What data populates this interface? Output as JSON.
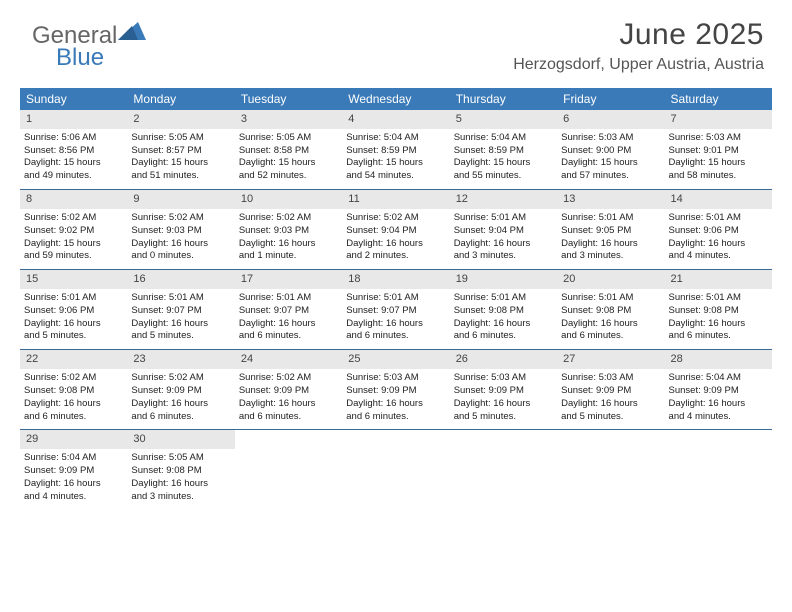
{
  "brand": {
    "part1": "General",
    "part2": "Blue"
  },
  "header": {
    "title": "June 2025",
    "location": "Herzogsdorf, Upper Austria, Austria"
  },
  "colors": {
    "header_bg": "#3a7ab8",
    "week_border": "#3a6a98",
    "daynum_bg": "#e8e8e8",
    "text": "#222222",
    "title_text": "#444444",
    "location_text": "#555555"
  },
  "typography": {
    "title_fontsize": 30,
    "location_fontsize": 16,
    "dayheader_fontsize": 12,
    "body_fontsize": 9.5
  },
  "dayNames": [
    "Sunday",
    "Monday",
    "Tuesday",
    "Wednesday",
    "Thursday",
    "Friday",
    "Saturday"
  ],
  "weeks": [
    [
      {
        "n": "1",
        "sr": "Sunrise: 5:06 AM",
        "ss": "Sunset: 8:56 PM",
        "d1": "Daylight: 15 hours",
        "d2": "and 49 minutes."
      },
      {
        "n": "2",
        "sr": "Sunrise: 5:05 AM",
        "ss": "Sunset: 8:57 PM",
        "d1": "Daylight: 15 hours",
        "d2": "and 51 minutes."
      },
      {
        "n": "3",
        "sr": "Sunrise: 5:05 AM",
        "ss": "Sunset: 8:58 PM",
        "d1": "Daylight: 15 hours",
        "d2": "and 52 minutes."
      },
      {
        "n": "4",
        "sr": "Sunrise: 5:04 AM",
        "ss": "Sunset: 8:59 PM",
        "d1": "Daylight: 15 hours",
        "d2": "and 54 minutes."
      },
      {
        "n": "5",
        "sr": "Sunrise: 5:04 AM",
        "ss": "Sunset: 8:59 PM",
        "d1": "Daylight: 15 hours",
        "d2": "and 55 minutes."
      },
      {
        "n": "6",
        "sr": "Sunrise: 5:03 AM",
        "ss": "Sunset: 9:00 PM",
        "d1": "Daylight: 15 hours",
        "d2": "and 57 minutes."
      },
      {
        "n": "7",
        "sr": "Sunrise: 5:03 AM",
        "ss": "Sunset: 9:01 PM",
        "d1": "Daylight: 15 hours",
        "d2": "and 58 minutes."
      }
    ],
    [
      {
        "n": "8",
        "sr": "Sunrise: 5:02 AM",
        "ss": "Sunset: 9:02 PM",
        "d1": "Daylight: 15 hours",
        "d2": "and 59 minutes."
      },
      {
        "n": "9",
        "sr": "Sunrise: 5:02 AM",
        "ss": "Sunset: 9:03 PM",
        "d1": "Daylight: 16 hours",
        "d2": "and 0 minutes."
      },
      {
        "n": "10",
        "sr": "Sunrise: 5:02 AM",
        "ss": "Sunset: 9:03 PM",
        "d1": "Daylight: 16 hours",
        "d2": "and 1 minute."
      },
      {
        "n": "11",
        "sr": "Sunrise: 5:02 AM",
        "ss": "Sunset: 9:04 PM",
        "d1": "Daylight: 16 hours",
        "d2": "and 2 minutes."
      },
      {
        "n": "12",
        "sr": "Sunrise: 5:01 AM",
        "ss": "Sunset: 9:04 PM",
        "d1": "Daylight: 16 hours",
        "d2": "and 3 minutes."
      },
      {
        "n": "13",
        "sr": "Sunrise: 5:01 AM",
        "ss": "Sunset: 9:05 PM",
        "d1": "Daylight: 16 hours",
        "d2": "and 3 minutes."
      },
      {
        "n": "14",
        "sr": "Sunrise: 5:01 AM",
        "ss": "Sunset: 9:06 PM",
        "d1": "Daylight: 16 hours",
        "d2": "and 4 minutes."
      }
    ],
    [
      {
        "n": "15",
        "sr": "Sunrise: 5:01 AM",
        "ss": "Sunset: 9:06 PM",
        "d1": "Daylight: 16 hours",
        "d2": "and 5 minutes."
      },
      {
        "n": "16",
        "sr": "Sunrise: 5:01 AM",
        "ss": "Sunset: 9:07 PM",
        "d1": "Daylight: 16 hours",
        "d2": "and 5 minutes."
      },
      {
        "n": "17",
        "sr": "Sunrise: 5:01 AM",
        "ss": "Sunset: 9:07 PM",
        "d1": "Daylight: 16 hours",
        "d2": "and 6 minutes."
      },
      {
        "n": "18",
        "sr": "Sunrise: 5:01 AM",
        "ss": "Sunset: 9:07 PM",
        "d1": "Daylight: 16 hours",
        "d2": "and 6 minutes."
      },
      {
        "n": "19",
        "sr": "Sunrise: 5:01 AM",
        "ss": "Sunset: 9:08 PM",
        "d1": "Daylight: 16 hours",
        "d2": "and 6 minutes."
      },
      {
        "n": "20",
        "sr": "Sunrise: 5:01 AM",
        "ss": "Sunset: 9:08 PM",
        "d1": "Daylight: 16 hours",
        "d2": "and 6 minutes."
      },
      {
        "n": "21",
        "sr": "Sunrise: 5:01 AM",
        "ss": "Sunset: 9:08 PM",
        "d1": "Daylight: 16 hours",
        "d2": "and 6 minutes."
      }
    ],
    [
      {
        "n": "22",
        "sr": "Sunrise: 5:02 AM",
        "ss": "Sunset: 9:08 PM",
        "d1": "Daylight: 16 hours",
        "d2": "and 6 minutes."
      },
      {
        "n": "23",
        "sr": "Sunrise: 5:02 AM",
        "ss": "Sunset: 9:09 PM",
        "d1": "Daylight: 16 hours",
        "d2": "and 6 minutes."
      },
      {
        "n": "24",
        "sr": "Sunrise: 5:02 AM",
        "ss": "Sunset: 9:09 PM",
        "d1": "Daylight: 16 hours",
        "d2": "and 6 minutes."
      },
      {
        "n": "25",
        "sr": "Sunrise: 5:03 AM",
        "ss": "Sunset: 9:09 PM",
        "d1": "Daylight: 16 hours",
        "d2": "and 6 minutes."
      },
      {
        "n": "26",
        "sr": "Sunrise: 5:03 AM",
        "ss": "Sunset: 9:09 PM",
        "d1": "Daylight: 16 hours",
        "d2": "and 5 minutes."
      },
      {
        "n": "27",
        "sr": "Sunrise: 5:03 AM",
        "ss": "Sunset: 9:09 PM",
        "d1": "Daylight: 16 hours",
        "d2": "and 5 minutes."
      },
      {
        "n": "28",
        "sr": "Sunrise: 5:04 AM",
        "ss": "Sunset: 9:09 PM",
        "d1": "Daylight: 16 hours",
        "d2": "and 4 minutes."
      }
    ],
    [
      {
        "n": "29",
        "sr": "Sunrise: 5:04 AM",
        "ss": "Sunset: 9:09 PM",
        "d1": "Daylight: 16 hours",
        "d2": "and 4 minutes."
      },
      {
        "n": "30",
        "sr": "Sunrise: 5:05 AM",
        "ss": "Sunset: 9:08 PM",
        "d1": "Daylight: 16 hours",
        "d2": "and 3 minutes."
      },
      null,
      null,
      null,
      null,
      null
    ]
  ]
}
